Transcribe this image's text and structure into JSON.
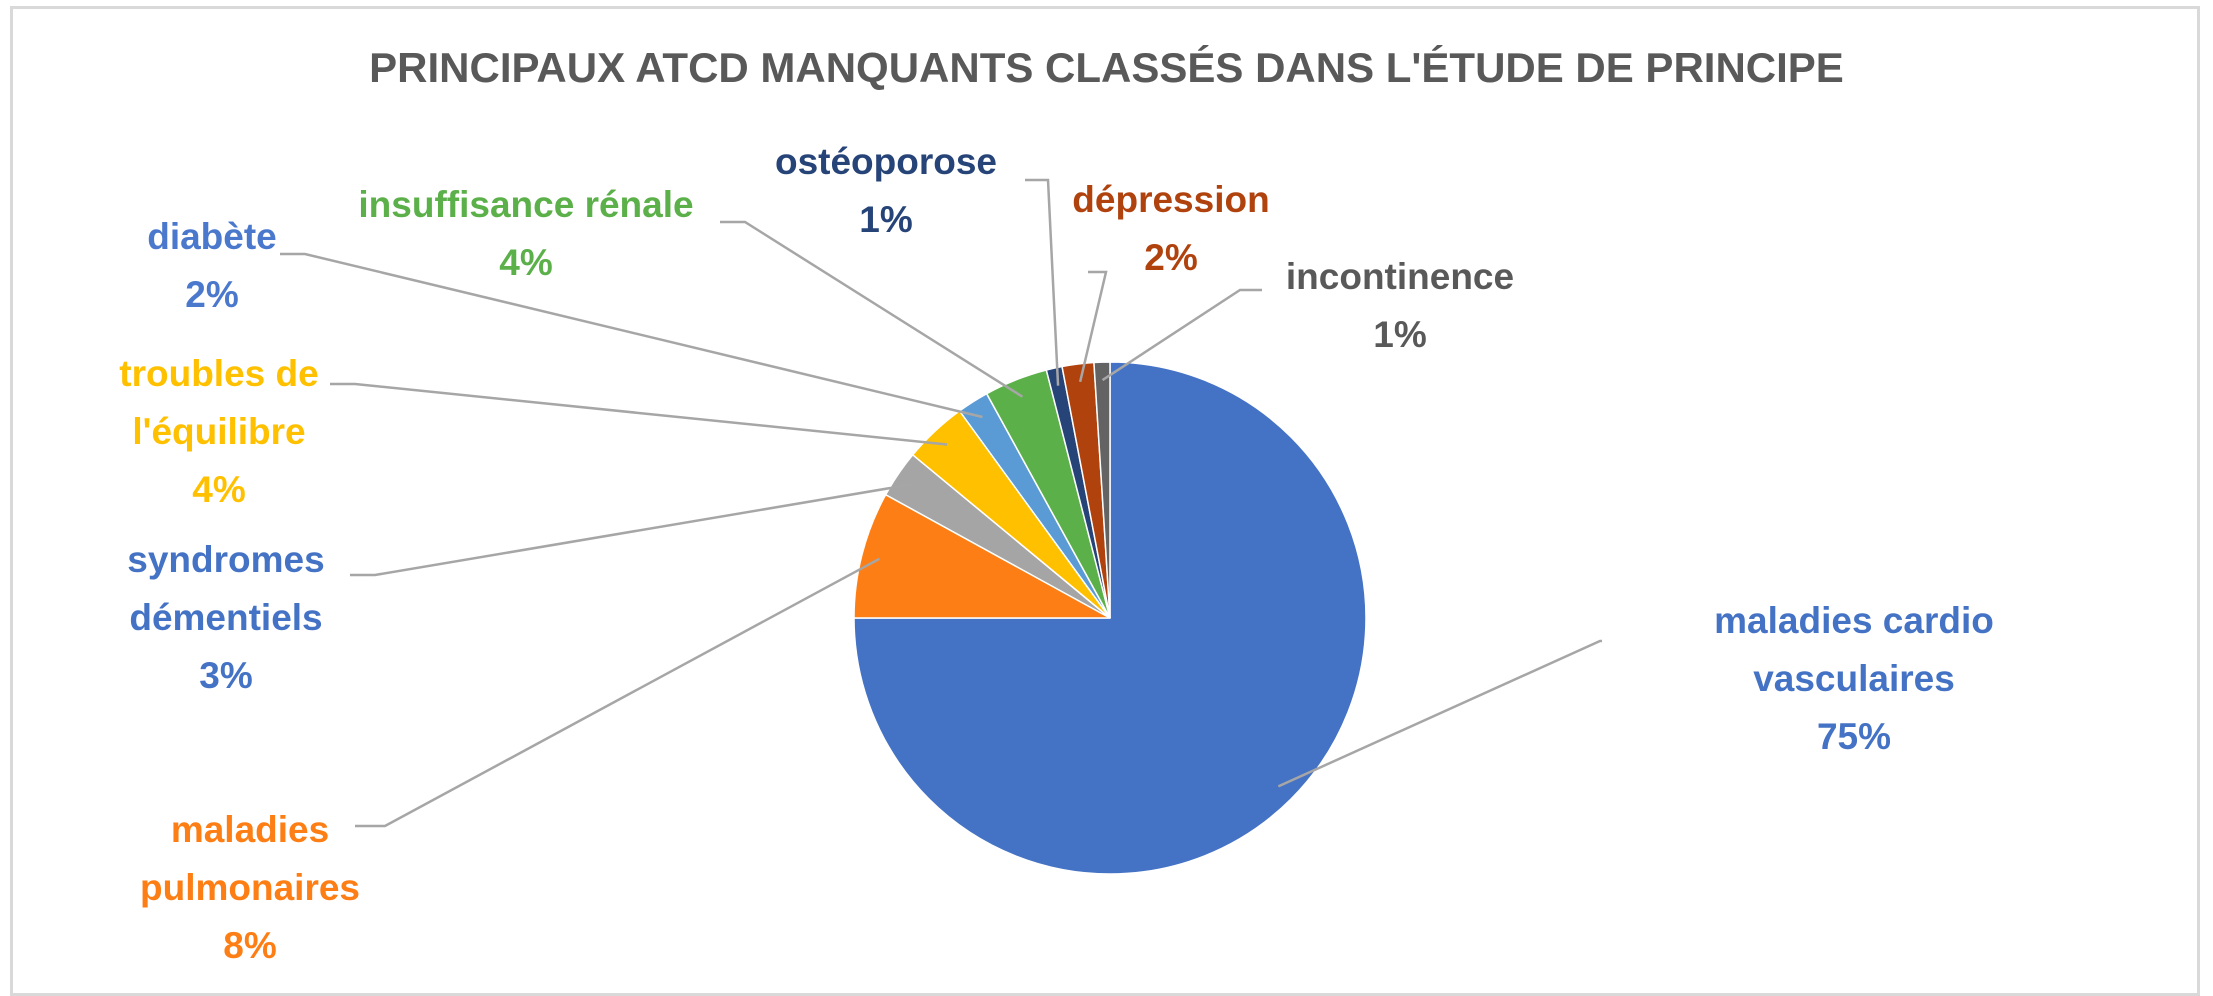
{
  "chart_data": {
    "type": "pie",
    "title": "PRINCIPAUX ATCD MANQUANTS CLASSÉS DANS L'ÉTUDE DE PRINCIPE",
    "categories": [
      "maladies cardio vasculaires",
      "maladies pulmonaires",
      "syndromes démentiels",
      "troubles de l'équilibre",
      "diabète",
      "insuffisance rénale",
      "ostéoporose",
      "dépression",
      "incontinence"
    ],
    "values": [
      75,
      8,
      3,
      4,
      2,
      4,
      1,
      2,
      1
    ],
    "value_labels": [
      "75%",
      "8%",
      "3%",
      "4%",
      "2%",
      "4%",
      "1%",
      "2%",
      "1%"
    ],
    "colors": [
      "#4472c4",
      "#fd7e14",
      "#a5a5a5",
      "#ffc000",
      "#5b9bd5",
      "#5cb04a",
      "#264478",
      "#b0420e",
      "#636363"
    ],
    "label_colors": [
      "#4472c4",
      "#fd7e14",
      "#4472c4",
      "#ffc000",
      "#4a78cc",
      "#5cb04a",
      "#264478",
      "#b0420e",
      "#595959"
    ]
  }
}
